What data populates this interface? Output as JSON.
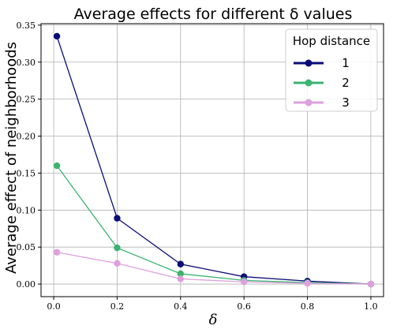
{
  "chart_data": {
    "type": "line",
    "title": "Average effects for different δ values",
    "xlabel": "δ",
    "ylabel": "Average effect of neighborhoods",
    "x": [
      0.01,
      0.2,
      0.4,
      0.6,
      0.8,
      1.0
    ],
    "xlim": [
      -0.04,
      1.04
    ],
    "ylim": [
      -0.017,
      0.352
    ],
    "x_ticks": [
      0.0,
      0.2,
      0.4,
      0.6,
      0.8,
      1.0
    ],
    "x_tick_labels": [
      "0.0",
      "0.2",
      "0.4",
      "0.6",
      "0.8",
      "1.0"
    ],
    "y_ticks": [
      0.0,
      0.05,
      0.1,
      0.15,
      0.2,
      0.25,
      0.3,
      0.35
    ],
    "y_tick_labels": [
      "0.00",
      "0.05",
      "0.10",
      "0.15",
      "0.20",
      "0.25",
      "0.30",
      "0.35"
    ],
    "grid": true,
    "legend": {
      "title": "Hop distance",
      "position": "top-right"
    },
    "series": [
      {
        "name": "1",
        "color": "#0b0b78",
        "values": [
          0.335,
          0.089,
          0.027,
          0.01,
          0.004,
          0.0
        ]
      },
      {
        "name": "2",
        "color": "#3cb371",
        "values": [
          0.16,
          0.049,
          0.014,
          0.005,
          0.002,
          0.0
        ]
      },
      {
        "name": "3",
        "color": "#dda0dd",
        "values": [
          0.043,
          0.028,
          0.007,
          0.003,
          0.001,
          0.0
        ]
      }
    ]
  }
}
